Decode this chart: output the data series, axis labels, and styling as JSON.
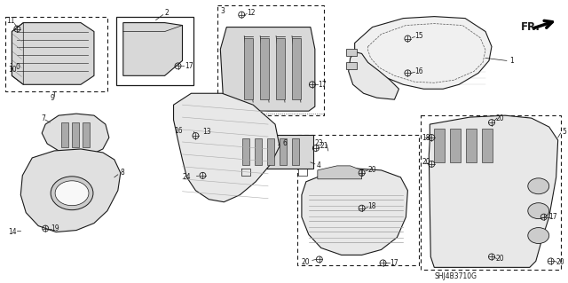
{
  "bg_color": "#ffffff",
  "diagram_id": "SHJ4B3710G",
  "fr_label": "FR.",
  "fig_width": 6.4,
  "fig_height": 3.19,
  "dpi": 100,
  "line_color": "#1a1a1a",
  "text_color": "#1a1a1a",
  "gray_fill": "#d8d8d8",
  "light_gray": "#e8e8e8",
  "font_size_label": 5.5,
  "font_size_id": 5.5,
  "font_size_fr": 8.5
}
